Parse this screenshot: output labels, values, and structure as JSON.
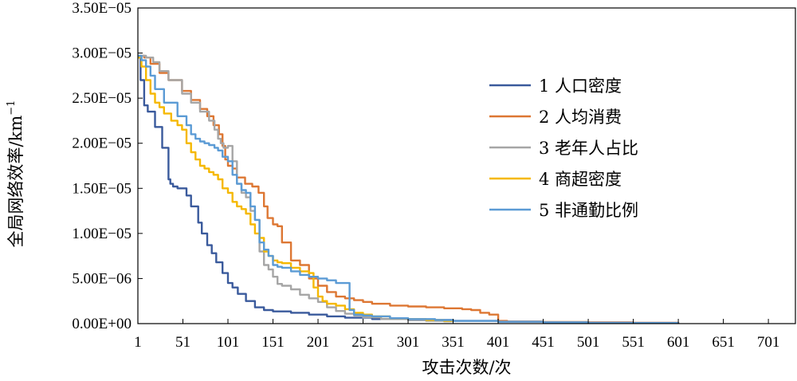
{
  "chart_data": {
    "type": "line",
    "title": "",
    "xlabel": "攻击次数/次",
    "ylabel": "全局网络效率/km",
    "ylabel_sup": "−1",
    "xlim": [
      1,
      731
    ],
    "ylim": [
      0,
      3.5e-05
    ],
    "x_ticks": [
      1,
      51,
      101,
      151,
      201,
      251,
      301,
      351,
      401,
      451,
      501,
      551,
      601,
      651,
      701
    ],
    "x_tick_labels": [
      "1",
      "51",
      "101",
      "151",
      "201",
      "251",
      "301",
      "351",
      "401",
      "451",
      "501",
      "551",
      "601",
      "651",
      "701"
    ],
    "y_ticks": [
      0,
      5e-06,
      1e-05,
      1.5e-05,
      2e-05,
      2.5e-05,
      3e-05,
      3.5e-05
    ],
    "y_tick_labels": [
      "0.00E+00",
      "5.00E−06",
      "1.00E−05",
      "1.50E−05",
      "2.00E−05",
      "2.50E−05",
      "3.00E−05",
      "3.50E−05"
    ],
    "grid": false,
    "legend_position": "right",
    "series": [
      {
        "name": "1 人口密度",
        "color": "#3a5a9c",
        "x": [
          1,
          4,
          8,
          12,
          20,
          28,
          35,
          37,
          40,
          45,
          55,
          60,
          68,
          72,
          78,
          83,
          88,
          95,
          101,
          106,
          112,
          121,
          131,
          141,
          151,
          171,
          191,
          211,
          231,
          261,
          301,
          351,
          401,
          451,
          501,
          551,
          601
        ],
        "y": [
          2.95e-05,
          2.7e-05,
          2.42e-05,
          2.35e-05,
          2.18e-05,
          1.95e-05,
          1.6e-05,
          1.55e-05,
          1.52e-05,
          1.5e-05,
          1.42e-05,
          1.3e-05,
          1.12e-05,
          1e-05,
          8.7e-06,
          7.8e-06,
          6.8e-06,
          5.6e-06,
          4.5e-06,
          4e-06,
          3.3e-06,
          2.5e-06,
          1.8e-06,
          1.5e-06,
          1.35e-06,
          1.2e-06,
          1e-06,
          8e-07,
          6.5e-07,
          5e-07,
          4e-07,
          3e-07,
          2.2e-07,
          1.6e-07,
          1.2e-07,
          8e-08,
          5e-08
        ]
      },
      {
        "name": "2 人均消费",
        "color": "#dd7733",
        "x": [
          1,
          8,
          15,
          25,
          35,
          50,
          60,
          70,
          78,
          85,
          91,
          95,
          98,
          101,
          106,
          111,
          120,
          128,
          135,
          141,
          145,
          151,
          156,
          161,
          171,
          181,
          191,
          201,
          211,
          221,
          231,
          241,
          251,
          261,
          281,
          301,
          321,
          341,
          361,
          371,
          381,
          391,
          401,
          411,
          451,
          501,
          551,
          601
        ],
        "y": [
          2.97e-05,
          2.95e-05,
          2.88e-05,
          2.78e-05,
          2.7e-05,
          2.58e-05,
          2.48e-05,
          2.38e-05,
          2.3e-05,
          2.2e-05,
          2.1e-05,
          1.97e-05,
          1.82e-05,
          1.75e-05,
          1.72e-05,
          1.62e-05,
          1.55e-05,
          1.52e-05,
          1.45e-05,
          1.3e-05,
          1.17e-05,
          1.1e-05,
          1.08e-05,
          9e-06,
          7e-06,
          6.5e-06,
          5e-06,
          4.2e-06,
          3.5e-06,
          3e-06,
          2.8e-06,
          2.6e-06,
          2.4e-06,
          2.2e-06,
          2e-06,
          1.9e-06,
          1.8e-06,
          1.7e-06,
          1.6e-06,
          1.5e-06,
          1.2e-06,
          1e-06,
          3e-07,
          2.2e-07,
          1.8e-07,
          1.4e-07,
          1e-07,
          6e-08
        ]
      },
      {
        "name": "3 老年人占比",
        "color": "#a6a6a6",
        "x": [
          1,
          10,
          18,
          25,
          35,
          50,
          60,
          70,
          80,
          86,
          90,
          93,
          96,
          101,
          106,
          111,
          116,
          121,
          126,
          131,
          136,
          141,
          146,
          151,
          156,
          161,
          171,
          181,
          191,
          201,
          211,
          221,
          231,
          241,
          251,
          271,
          301,
          321,
          341,
          351
        ],
        "y": [
          2.97e-05,
          2.95e-05,
          2.9e-05,
          2.8e-05,
          2.7e-05,
          2.55e-05,
          2.45e-05,
          2.35e-05,
          2.25e-05,
          2.15e-05,
          2.05e-05,
          2e-05,
          1.95e-05,
          1.97e-05,
          1.8e-05,
          1.55e-05,
          1.45e-05,
          1.4e-05,
          1.25e-05,
          1.15e-05,
          8e-06,
          6.5e-06,
          6e-06,
          5.2e-06,
          4.4e-06,
          4.2e-06,
          3.8e-06,
          3.2e-06,
          2.8e-06,
          2.4e-06,
          1.8e-06,
          1.4e-06,
          1.1e-06,
          9e-07,
          7e-07,
          5e-07,
          4e-07,
          3e-07,
          2.5e-07,
          2e-07
        ]
      },
      {
        "name": "4 商超密度",
        "color": "#f5b800",
        "x": [
          1,
          5,
          10,
          15,
          20,
          25,
          30,
          38,
          45,
          50,
          55,
          60,
          65,
          70,
          75,
          80,
          85,
          90,
          95,
          101,
          106,
          111,
          116,
          121,
          126,
          131,
          136,
          141,
          146,
          151,
          156,
          161,
          171,
          181,
          191,
          196,
          201,
          206,
          211,
          221,
          231,
          241,
          251,
          261,
          281,
          301,
          321,
          341,
          351
        ],
        "y": [
          2.95e-05,
          2.85e-05,
          2.7e-05,
          2.55e-05,
          2.45e-05,
          2.4e-05,
          2.33e-05,
          2.25e-05,
          2.2e-05,
          2.15e-05,
          2e-05,
          1.9e-05,
          1.82e-05,
          1.75e-05,
          1.72e-05,
          1.68e-05,
          1.65e-05,
          1.6e-05,
          1.5e-05,
          1.45e-05,
          1.35e-05,
          1.3e-05,
          1.27e-05,
          1.22e-05,
          1.1e-05,
          1e-05,
          9.5e-06,
          8e-06,
          7.5e-06,
          7e-06,
          6.8e-06,
          6.7e-06,
          6.2e-06,
          5.8e-06,
          5.6e-06,
          4e-06,
          3e-06,
          2.5e-06,
          2.2e-06,
          2e-06,
          1.6e-06,
          1.2e-06,
          1e-06,
          8e-07,
          6e-07,
          5e-07,
          4e-07,
          3e-07,
          2e-07
        ]
      },
      {
        "name": "5 非通勤比例",
        "color": "#5b9bd5",
        "x": [
          1,
          5,
          10,
          15,
          20,
          30,
          45,
          55,
          60,
          65,
          70,
          75,
          80,
          86,
          90,
          95,
          101,
          106,
          111,
          116,
          121,
          126,
          131,
          136,
          141,
          146,
          151,
          156,
          161,
          171,
          181,
          191,
          201,
          211,
          221,
          231,
          236,
          241,
          251,
          261,
          281,
          301,
          331,
          351,
          401,
          451,
          501,
          551,
          601
        ],
        "y": [
          2.97e-05,
          2.92e-05,
          2.85e-05,
          2.75e-05,
          2.6e-05,
          2.45e-05,
          2.3e-05,
          2.2e-05,
          2.1e-05,
          2.05e-05,
          2.02e-05,
          2e-05,
          1.98e-05,
          1.95e-05,
          1.92e-05,
          1.85e-05,
          1.8e-05,
          1.65e-05,
          1.55e-05,
          1.48e-05,
          1.45e-05,
          1.3e-05,
          1.15e-05,
          9e-06,
          8.2e-06,
          7.5e-06,
          6.5e-06,
          6.3e-06,
          6.2e-06,
          5.8e-06,
          5.4e-06,
          5.2e-06,
          5e-06,
          4.8e-06,
          4.5e-06,
          4.5e-06,
          1.5e-06,
          1e-06,
          9e-07,
          8e-07,
          6e-07,
          5e-07,
          4e-07,
          3e-07,
          2e-07,
          1.5e-07,
          1e-07,
          7e-08,
          5e-08
        ]
      }
    ]
  }
}
